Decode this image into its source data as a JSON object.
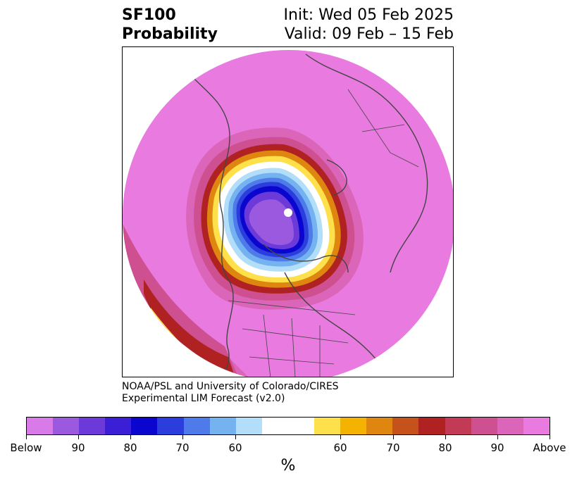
{
  "title": {
    "variable": "SF100",
    "subtitle": "Probability",
    "init": "Init: Wed 05 Feb 2025",
    "valid": "Valid: 09 Feb – 15 Feb"
  },
  "credit": {
    "line1": "NOAA/PSL and University of Colorado/CIRES",
    "line2": "Experimental LIM Forecast (v2.0)"
  },
  "colorbar": {
    "unit": "%",
    "colors": [
      "#d87ae8",
      "#9b59e0",
      "#6c3ad9",
      "#3a1fd6",
      "#0a06cf",
      "#2b3ddc",
      "#4e7aea",
      "#74b2f0",
      "#b3defa",
      "#ffffff",
      "#ffffff",
      "#fde04a",
      "#f4b300",
      "#df8610",
      "#c5521a",
      "#b02222",
      "#c23a56",
      "#cf5090",
      "#db65b8",
      "#e87ae0"
    ],
    "tick_labels": [
      "Below",
      "90",
      "80",
      "70",
      "60",
      "60",
      "70",
      "80",
      "90",
      "Above"
    ]
  },
  "map": {
    "projection": "north-polar-stereographic",
    "colors": {
      "above_max": "#e87ae0",
      "below_max": "#9b59e0",
      "ring_blue_dark": "#0a06cf",
      "ring_blue": "#2b3ddc",
      "ring_blue_light": "#74b2f0",
      "ring_white": "#ffffff",
      "ring_yellow": "#fde04a",
      "ring_orange": "#f4b300",
      "ring_red": "#b02222",
      "ring_pink": "#cf5090",
      "coast": "#444444"
    }
  }
}
